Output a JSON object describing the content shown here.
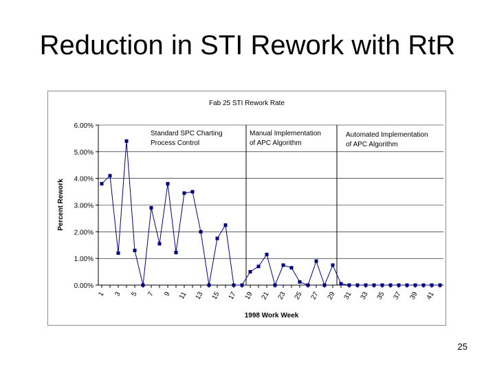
{
  "slide": {
    "title": "Reduction in STI Rework with RtR",
    "page_number": "25"
  },
  "chart_data": {
    "type": "line",
    "title": "Fab 25 STI Rework Rate",
    "xlabel": "1998 Work Week",
    "ylabel": "Percent Rework",
    "ylim": [
      0,
      6
    ],
    "yticks": [
      "0.00%",
      "1.00%",
      "2.00%",
      "3.00%",
      "4.00%",
      "5.00%",
      "6.00%"
    ],
    "xticks": [
      "1",
      "3",
      "5",
      "7",
      "9",
      "11",
      "13",
      "15",
      "17",
      "19",
      "21",
      "23",
      "25",
      "27",
      "29",
      "31",
      "33",
      "35",
      "37",
      "39",
      "41"
    ],
    "x": [
      1,
      2,
      3,
      4,
      5,
      6,
      7,
      8,
      9,
      10,
      11,
      12,
      13,
      14,
      15,
      16,
      17,
      18,
      19,
      20,
      21,
      22,
      23,
      24,
      25,
      26,
      27,
      28,
      29,
      30,
      31,
      32,
      33,
      34,
      35,
      36,
      37,
      38,
      39,
      40,
      41,
      42
    ],
    "series": [
      {
        "values": [
          3.8,
          4.1,
          1.2,
          5.4,
          1.3,
          0.0,
          2.9,
          1.55,
          3.8,
          1.22,
          3.45,
          3.5,
          2.0,
          0.0,
          1.75,
          2.25,
          0.0,
          0.0,
          0.5,
          0.7,
          1.15,
          0.0,
          0.75,
          0.65,
          0.12,
          0.0,
          0.9,
          0.0,
          0.75,
          0.05,
          0.0,
          0.0,
          0.0,
          0.0,
          0.0,
          0.0,
          0.0,
          0.0,
          0.0,
          0.0,
          0.0,
          0.0
        ],
        "color": "#000080"
      }
    ],
    "grid": "horizontal",
    "annotations": [
      {
        "lines": [
          "Standard SPC Charting",
          "Process Control"
        ]
      },
      {
        "lines": [
          "Manual Implementation",
          "of APC Algorithm"
        ],
        "divider_after_week": 18.5
      },
      {
        "lines": [
          "Automated Implementation",
          "of APC Algorithm"
        ],
        "divider_after_week": 29.5
      }
    ]
  }
}
